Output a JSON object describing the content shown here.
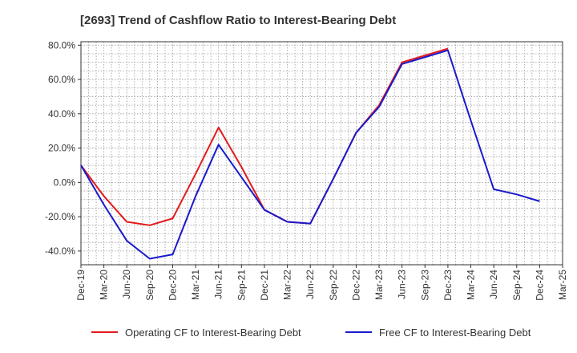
{
  "chart_data": {
    "type": "line",
    "title": "[2693]  Trend of Cashflow Ratio to Interest-Bearing Debt",
    "xlabel": "",
    "ylabel": "",
    "ylim": [
      -48,
      82
    ],
    "y_ticks": [
      "80.0%",
      "60.0%",
      "40.0%",
      "20.0%",
      "0.0%",
      "-20.0%",
      "-40.0%"
    ],
    "y_tick_values": [
      80,
      60,
      40,
      20,
      0,
      -20,
      -40
    ],
    "categories": [
      "Dec-19",
      "Mar-20",
      "Jun-20",
      "Sep-20",
      "Dec-20",
      "Mar-21",
      "Jun-21",
      "Sep-21",
      "Dec-21",
      "Mar-22",
      "Jun-22",
      "Sep-22",
      "Dec-22",
      "Mar-23",
      "Jun-23",
      "Sep-23",
      "Dec-23",
      "Mar-24",
      "Jun-24",
      "Sep-24",
      "Dec-24",
      "Mar-25"
    ],
    "grid": true,
    "legend_position": "bottom",
    "series": [
      {
        "name": "Operating CF to Interest-Bearing Debt",
        "color": "#e41a1c",
        "values": [
          10,
          -8,
          -23,
          -25,
          -21,
          5,
          32,
          9,
          -16,
          -23,
          -24,
          2,
          29,
          45,
          70,
          74,
          78,
          null,
          null,
          null,
          null,
          null
        ]
      },
      {
        "name": "Free CF to Interest-Bearing Debt",
        "color": "#1a1acc",
        "values": [
          10,
          -13,
          -34,
          -44.5,
          -42,
          -8,
          22,
          3,
          -16,
          -23,
          -24,
          2,
          29,
          44,
          69,
          73,
          77,
          36,
          -4,
          -7,
          -11,
          null
        ]
      }
    ]
  }
}
